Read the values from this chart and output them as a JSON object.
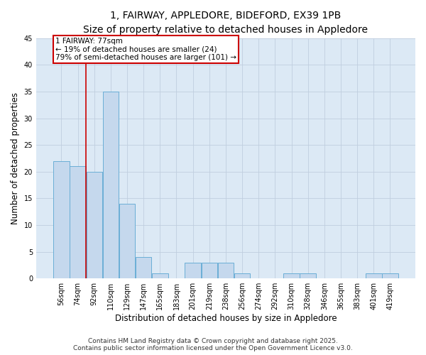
{
  "title_line1": "1, FAIRWAY, APPLEDORE, BIDEFORD, EX39 1PB",
  "title_line2": "Size of property relative to detached houses in Appledore",
  "xlabel": "Distribution of detached houses by size in Appledore",
  "ylabel": "Number of detached properties",
  "categories": [
    "56sqm",
    "74sqm",
    "92sqm",
    "110sqm",
    "129sqm",
    "147sqm",
    "165sqm",
    "183sqm",
    "201sqm",
    "219sqm",
    "238sqm",
    "256sqm",
    "274sqm",
    "292sqm",
    "310sqm",
    "328sqm",
    "346sqm",
    "365sqm",
    "383sqm",
    "401sqm",
    "419sqm"
  ],
  "values": [
    22,
    21,
    20,
    35,
    14,
    4,
    1,
    0,
    3,
    3,
    3,
    1,
    0,
    0,
    1,
    1,
    0,
    0,
    0,
    1,
    1
  ],
  "bar_color": "#c5d8ed",
  "bar_edge_color": "#6aaed6",
  "background_color": "#ffffff",
  "plot_bg_color": "#dce9f5",
  "grid_color": "#c0cedf",
  "annotation_text_line1": "1 FAIRWAY: 77sqm",
  "annotation_text_line2": "← 19% of detached houses are smaller (24)",
  "annotation_text_line3": "79% of semi-detached houses are larger (101) →",
  "annotation_box_color": "#ffffff",
  "annotation_box_edge": "#cc0000",
  "vline_color": "#cc0000",
  "ylim": [
    0,
    45
  ],
  "yticks": [
    0,
    5,
    10,
    15,
    20,
    25,
    30,
    35,
    40,
    45
  ],
  "footer_line1": "Contains HM Land Registry data © Crown copyright and database right 2025.",
  "footer_line2": "Contains public sector information licensed under the Open Government Licence v3.0.",
  "title_fontsize": 10,
  "subtitle_fontsize": 9,
  "axis_label_fontsize": 8.5,
  "tick_fontsize": 7,
  "annotation_fontsize": 7.5,
  "footer_fontsize": 6.5
}
